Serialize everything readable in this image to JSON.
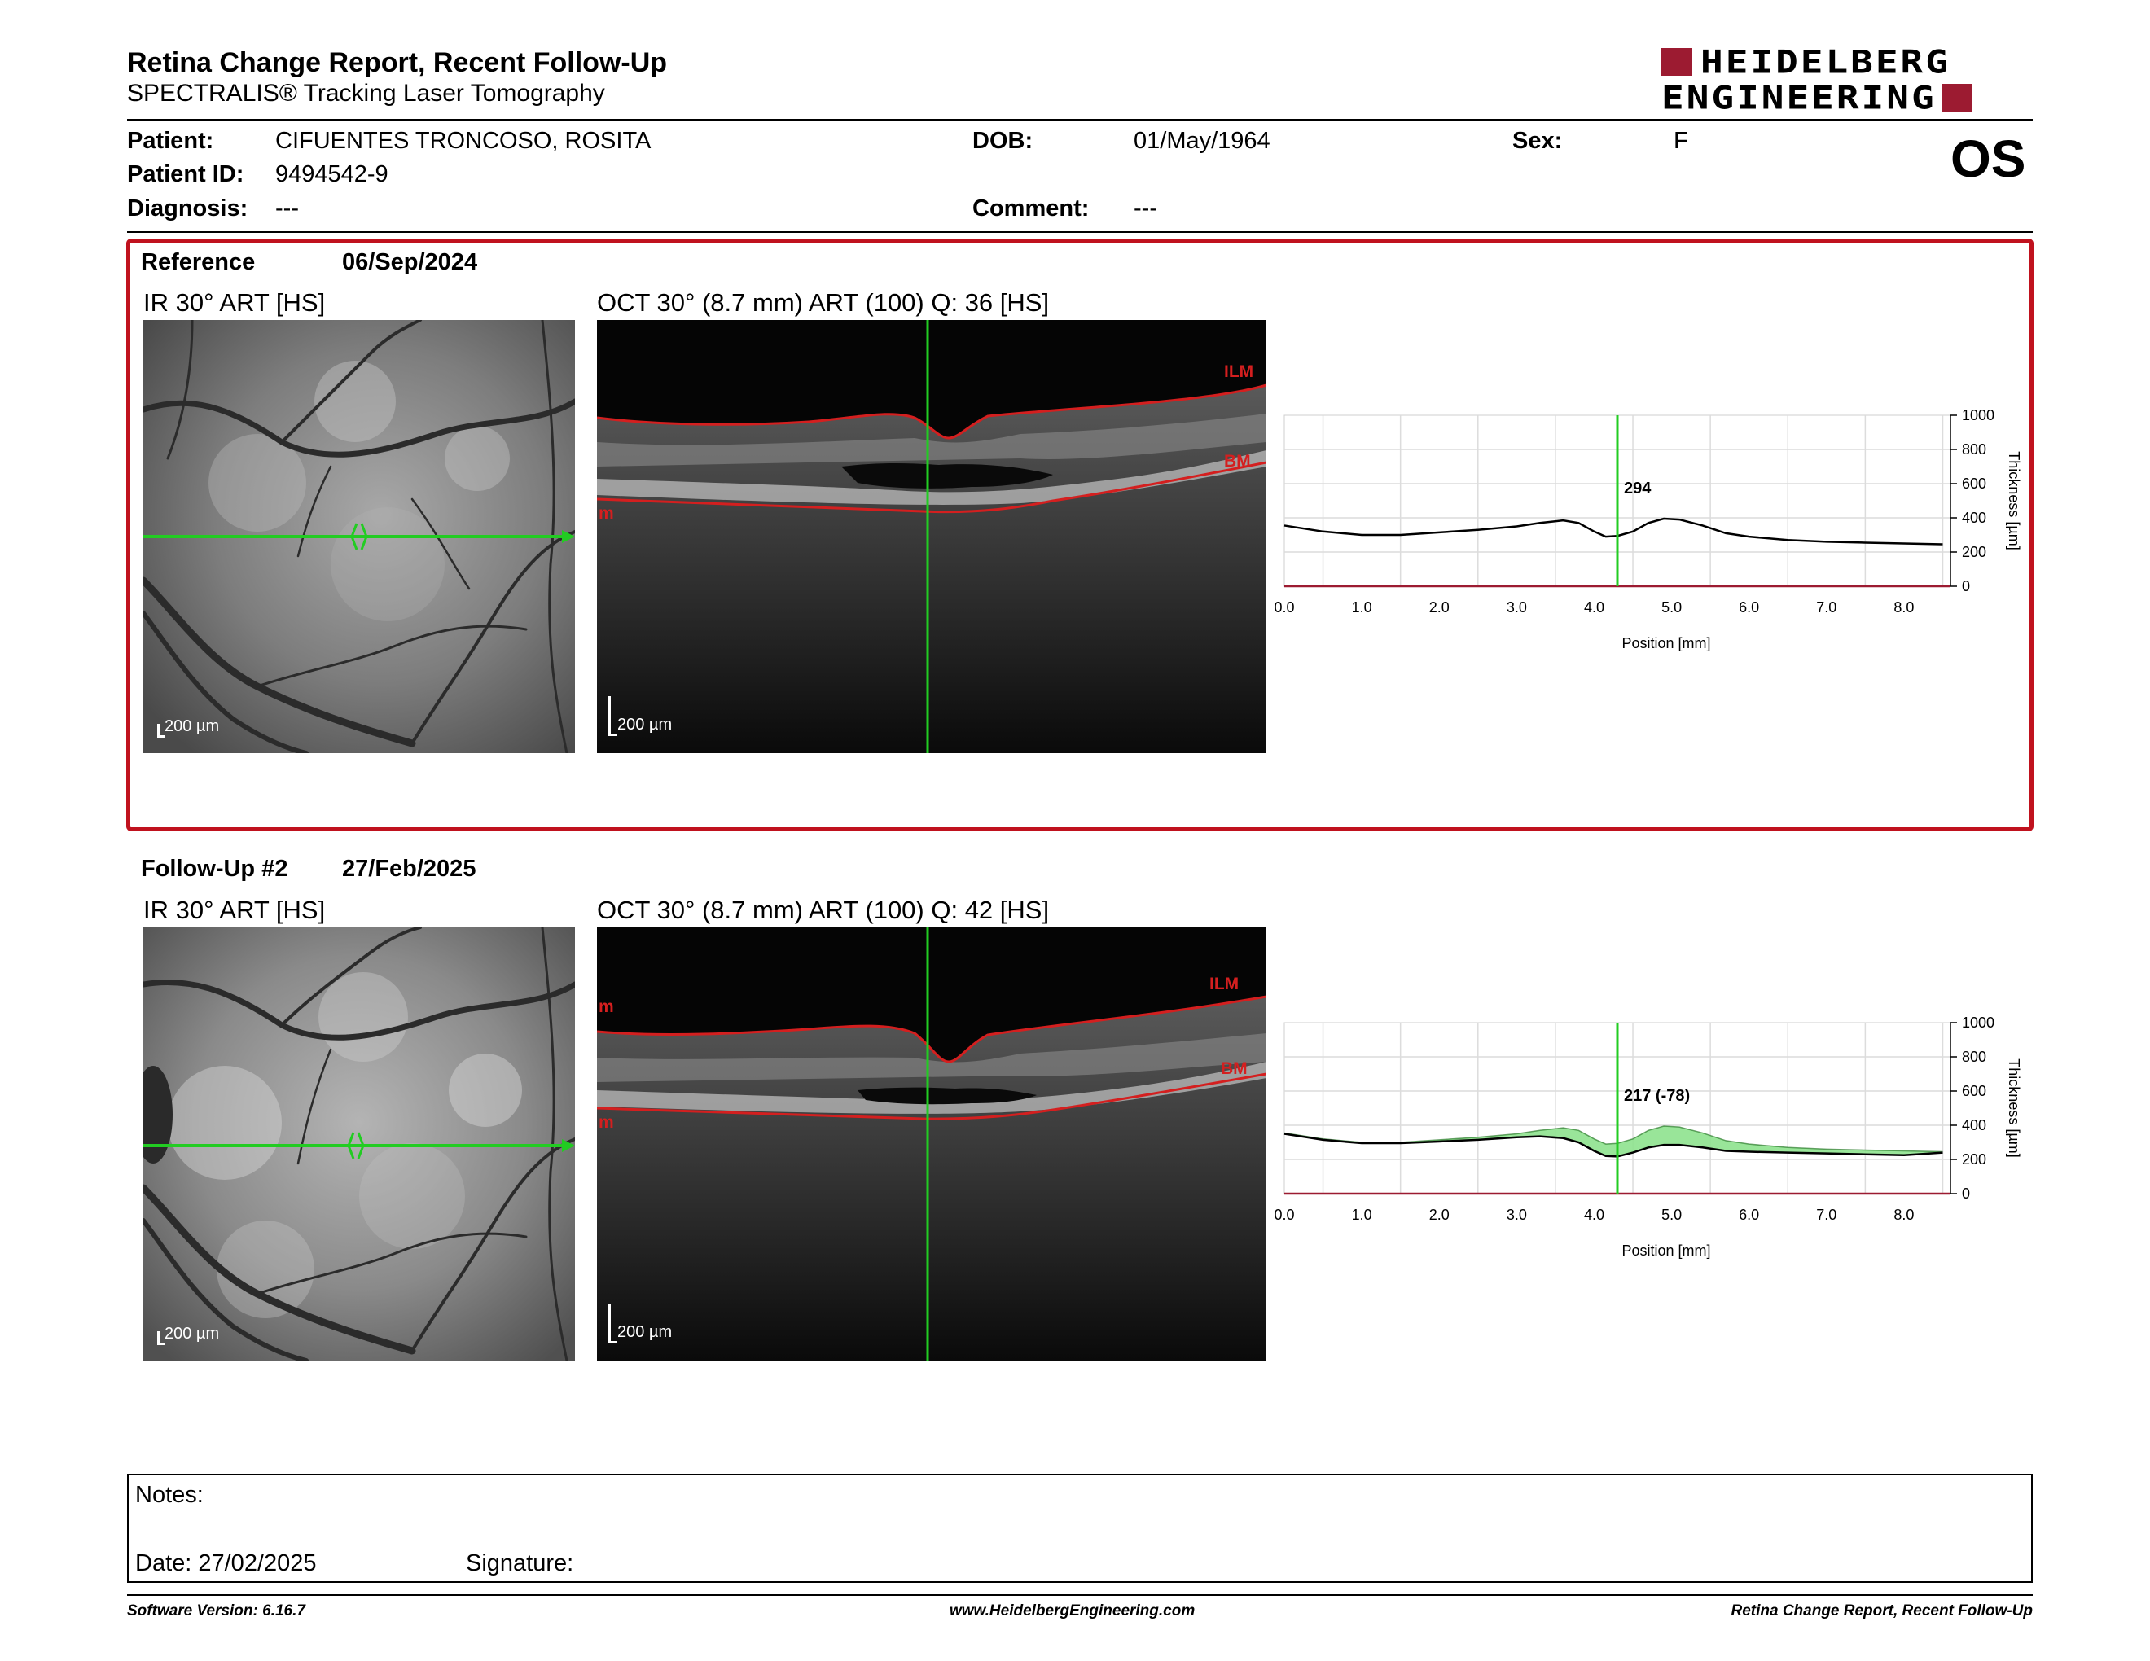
{
  "header": {
    "title": "Retina Change Report, Recent Follow-Up",
    "subtitle": "SPECTRALIS® Tracking Laser Tomography",
    "logo_line1": "HEIDELBERG",
    "logo_line2": "ENGINEERING",
    "eye": "OS"
  },
  "patient": {
    "patient_label": "Patient:",
    "patient_value": "CIFUENTES TRONCOSO, ROSITA",
    "dob_label": "DOB:",
    "dob_value": "01/May/1964",
    "sex_label": "Sex:",
    "sex_value": "F",
    "id_label": "Patient ID:",
    "id_value": "9494542-9",
    "diagnosis_label": "Diagnosis:",
    "diagnosis_value": "---",
    "comment_label": "Comment:",
    "comment_value": "---"
  },
  "sections": [
    {
      "label": "Reference",
      "date": "06/Sep/2024",
      "ir_caption": "IR 30° ART [HS]",
      "oct_caption": "OCT 30° (8.7 mm) ART (100) Q: 36 [HS]",
      "scale_label": "200 µm",
      "ilm_label": "ILM",
      "bm_label": "BM",
      "edge_label": "m",
      "cursor_value": "294"
    },
    {
      "label": "Follow-Up #2",
      "date": "27/Feb/2025",
      "ir_caption": "IR 30° ART [HS]",
      "oct_caption": "OCT 30° (8.7 mm) ART (100) Q: 42 [HS]",
      "scale_label": "200 µm",
      "ilm_label": "ILM",
      "bm_label": "BM",
      "edge_label": "m",
      "cursor_value": "217 (-78)"
    }
  ],
  "chart_data": [
    {
      "type": "line",
      "xlabel": "Position [mm]",
      "ylabel": "Thickness [µm]",
      "xlim": [
        0,
        8.6
      ],
      "ylim": [
        0,
        1000
      ],
      "x_ticks": [
        "0.0",
        "1.0",
        "2.0",
        "3.0",
        "4.0",
        "5.0",
        "6.0",
        "7.0",
        "8.0"
      ],
      "y_ticks": [
        "0",
        "200",
        "400",
        "600",
        "800",
        "1000"
      ],
      "cursor_x": 4.3,
      "series": [
        {
          "x": [
            0.0,
            0.5,
            1.0,
            1.5,
            2.0,
            2.5,
            3.0,
            3.3,
            3.6,
            3.8,
            4.0,
            4.15,
            4.3,
            4.5,
            4.7,
            4.9,
            5.1,
            5.4,
            5.7,
            6.0,
            6.5,
            7.0,
            7.5,
            8.0,
            8.5
          ],
          "values": [
            355,
            320,
            300,
            300,
            315,
            330,
            350,
            370,
            385,
            370,
            320,
            290,
            294,
            320,
            370,
            395,
            390,
            355,
            310,
            290,
            270,
            260,
            255,
            250,
            245
          ]
        }
      ]
    },
    {
      "type": "area",
      "xlabel": "Position [mm]",
      "ylabel": "Thickness [µm]",
      "xlim": [
        0,
        8.6
      ],
      "ylim": [
        0,
        1000
      ],
      "x_ticks": [
        "0.0",
        "1.0",
        "2.0",
        "3.0",
        "4.0",
        "5.0",
        "6.0",
        "7.0",
        "8.0"
      ],
      "y_ticks": [
        "0",
        "200",
        "400",
        "600",
        "800",
        "1000"
      ],
      "cursor_x": 4.3,
      "series": [
        {
          "x": [
            0.0,
            0.5,
            1.0,
            1.5,
            2.0,
            2.5,
            3.0,
            3.3,
            3.6,
            3.8,
            4.0,
            4.15,
            4.3,
            4.5,
            4.7,
            4.9,
            5.1,
            5.4,
            5.7,
            6.0,
            6.5,
            7.0,
            7.5,
            8.0,
            8.5
          ],
          "values": [
            350,
            315,
            295,
            295,
            305,
            315,
            330,
            335,
            325,
            300,
            250,
            220,
            217,
            240,
            270,
            285,
            285,
            270,
            250,
            245,
            240,
            235,
            230,
            225,
            240
          ]
        },
        {
          "x": [
            0.0,
            0.5,
            1.0,
            1.5,
            2.0,
            2.5,
            3.0,
            3.3,
            3.6,
            3.8,
            4.0,
            4.15,
            4.3,
            4.5,
            4.7,
            4.9,
            5.1,
            5.4,
            5.7,
            6.0,
            6.5,
            7.0,
            7.5,
            8.0,
            8.5
          ],
          "values": [
            355,
            320,
            300,
            300,
            315,
            330,
            350,
            370,
            385,
            370,
            320,
            290,
            294,
            320,
            370,
            395,
            390,
            355,
            310,
            290,
            270,
            260,
            255,
            250,
            245
          ]
        }
      ]
    }
  ],
  "notes": {
    "notes_label": "Notes:",
    "date_label": "Date: 27/02/2025",
    "signature_label": "Signature:"
  },
  "footer": {
    "software": "Software Version: 6.16.7",
    "website": "www.HeidelbergEngineering.com",
    "report": "Retina Change Report, Recent Follow-Up"
  },
  "colors": {
    "brand": "#9c1b31",
    "reference_border": "#c0121e",
    "cursor": "#22cc22",
    "layer_line": "#d41f1f",
    "change_fill": "#8ee28e"
  }
}
